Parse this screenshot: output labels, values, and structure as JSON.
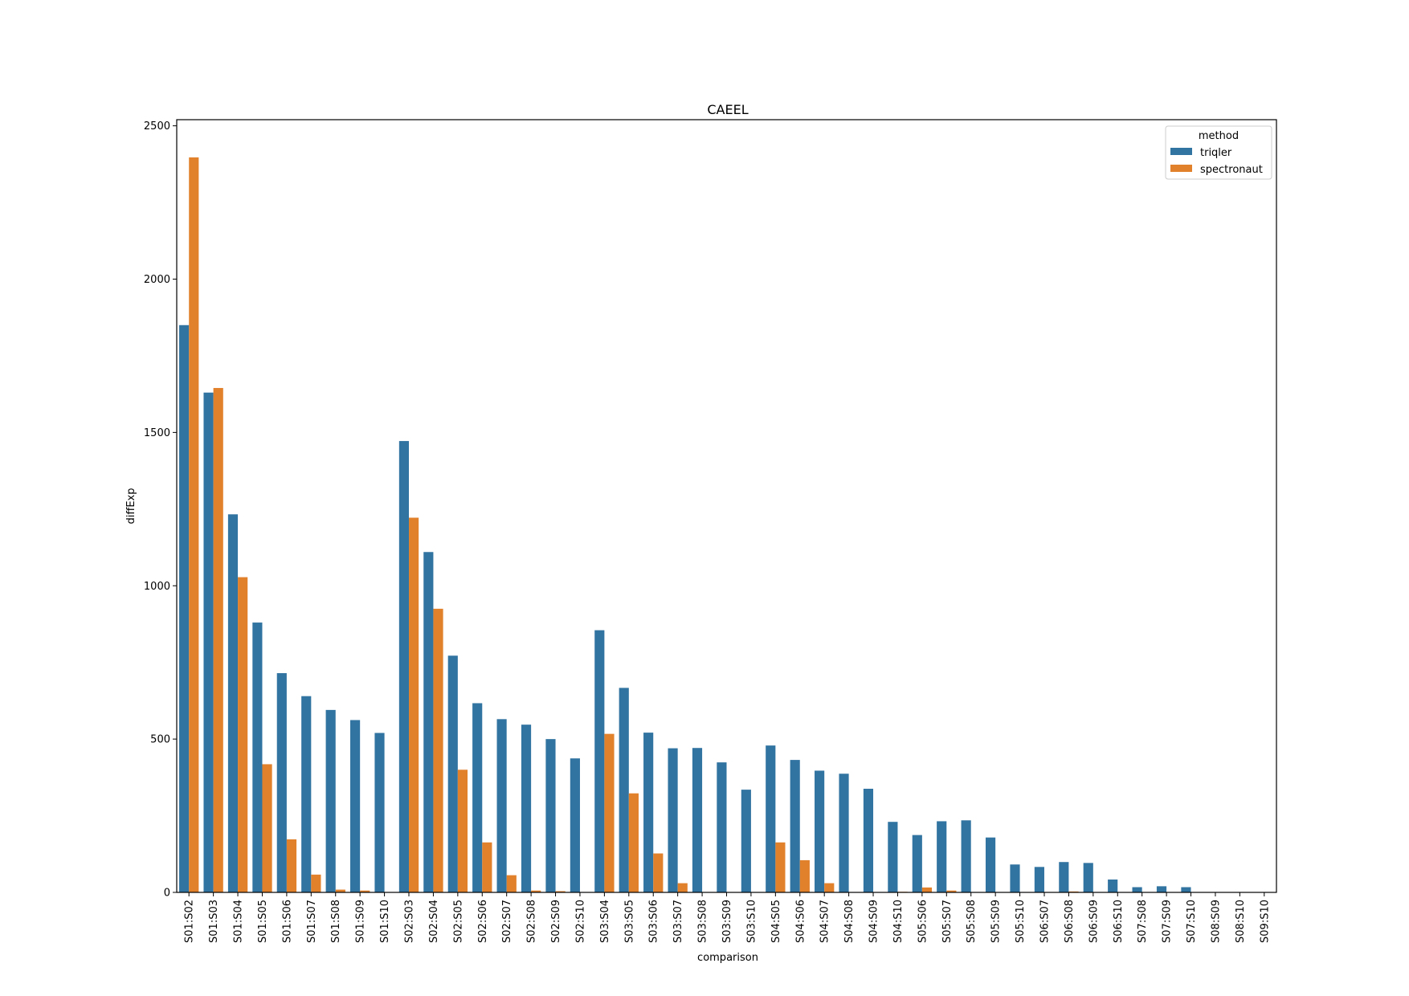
{
  "chart_data": {
    "type": "bar",
    "title": "CAEEL",
    "xlabel": "comparison",
    "ylabel": "diffExp",
    "ylim": [
      0,
      2520
    ],
    "yticks": [
      0,
      500,
      1000,
      1500,
      2000,
      2500
    ],
    "grid": false,
    "legend": {
      "title": "method",
      "position": "top-right"
    },
    "categories": [
      "S01:S02",
      "S01:S03",
      "S01:S04",
      "S01:S05",
      "S01:S06",
      "S01:S07",
      "S01:S08",
      "S01:S09",
      "S01:S10",
      "S02:S03",
      "S02:S04",
      "S02:S05",
      "S02:S06",
      "S02:S07",
      "S02:S08",
      "S02:S09",
      "S02:S10",
      "S03:S04",
      "S03:S05",
      "S03:S06",
      "S03:S07",
      "S03:S08",
      "S03:S09",
      "S03:S10",
      "S04:S05",
      "S04:S06",
      "S04:S07",
      "S04:S08",
      "S04:S09",
      "S04:S10",
      "S05:S06",
      "S05:S07",
      "S05:S08",
      "S05:S09",
      "S05:S10",
      "S06:S07",
      "S06:S08",
      "S06:S09",
      "S06:S10",
      "S07:S08",
      "S07:S09",
      "S07:S10",
      "S08:S09",
      "S08:S10",
      "S09:S10"
    ],
    "series": [
      {
        "name": "triqler",
        "color": "#3274a1",
        "values": [
          1850,
          1630,
          1233,
          880,
          715,
          640,
          595,
          562,
          520,
          1472,
          1110,
          772,
          617,
          565,
          547,
          500,
          437,
          855,
          667,
          521,
          470,
          471,
          424,
          335,
          479,
          432,
          397,
          387,
          338,
          230,
          187,
          232,
          235,
          179,
          91,
          83,
          99,
          96,
          42,
          17,
          20,
          17,
          0,
          0,
          0
        ]
      },
      {
        "name": "spectronaut",
        "color": "#e1812c",
        "values": [
          2397,
          1645,
          1028,
          418,
          173,
          58,
          9,
          6,
          0,
          1222,
          925,
          400,
          163,
          56,
          6,
          4,
          0,
          517,
          323,
          127,
          30,
          0,
          0,
          0,
          163,
          105,
          30,
          0,
          0,
          2,
          16,
          6,
          0,
          0,
          0,
          0,
          3,
          0,
          0,
          0,
          0,
          0,
          0,
          0,
          0
        ]
      }
    ]
  }
}
